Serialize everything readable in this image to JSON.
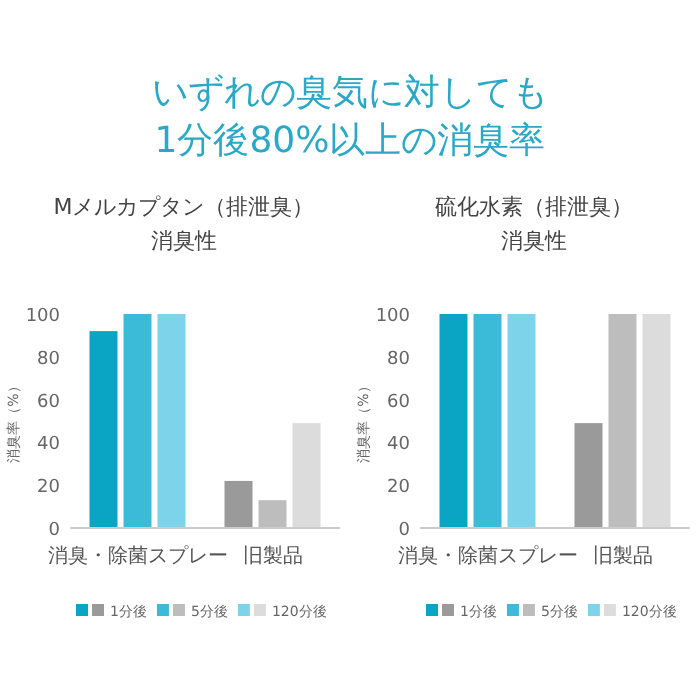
{
  "chart_data": [
    {
      "type": "bar",
      "title": "Mメルカプタン（排泄臭）",
      "subtitle": "消臭性",
      "ylabel": "消臭率（%）",
      "annotations": [
        "いずれの臭気に対しても\n1分後80%以上の消臭率"
      ],
      "categories": [
        "消臭・除菌スプレー",
        "旧製品"
      ],
      "ylim": [
        0,
        100
      ],
      "yticks": [
        0,
        20,
        40,
        60,
        80,
        100
      ],
      "legend": "bottom",
      "series": [
        {
          "name": "1分後",
          "colors": [
            "#0aa5c5",
            "#9a9a9a"
          ],
          "values": [
            92,
            22
          ]
        },
        {
          "name": "5分後",
          "colors": [
            "#3cbbd9",
            "#bdbdbd"
          ],
          "values": [
            100,
            13
          ]
        },
        {
          "name": "120分後",
          "colors": [
            "#7dd3ea",
            "#dcdcdc"
          ],
          "values": [
            100,
            49
          ]
        }
      ]
    },
    {
      "type": "bar",
      "title": "硫化水素（排泄臭）",
      "subtitle": "消臭性",
      "ylabel": "消臭率（%）",
      "categories": [
        "消臭・除菌スプレー",
        "旧製品"
      ],
      "ylim": [
        0,
        100
      ],
      "yticks": [
        0,
        20,
        40,
        60,
        80,
        100
      ],
      "legend": "bottom",
      "series": [
        {
          "name": "1分後",
          "colors": [
            "#0aa5c5",
            "#9a9a9a"
          ],
          "values": [
            100,
            49
          ]
        },
        {
          "name": "5分後",
          "colors": [
            "#3cbbd9",
            "#bdbdbd"
          ],
          "values": [
            100,
            100
          ]
        },
        {
          "name": "120分後",
          "colors": [
            "#7dd3ea",
            "#dcdcdc"
          ],
          "values": [
            100,
            100
          ]
        }
      ]
    }
  ]
}
